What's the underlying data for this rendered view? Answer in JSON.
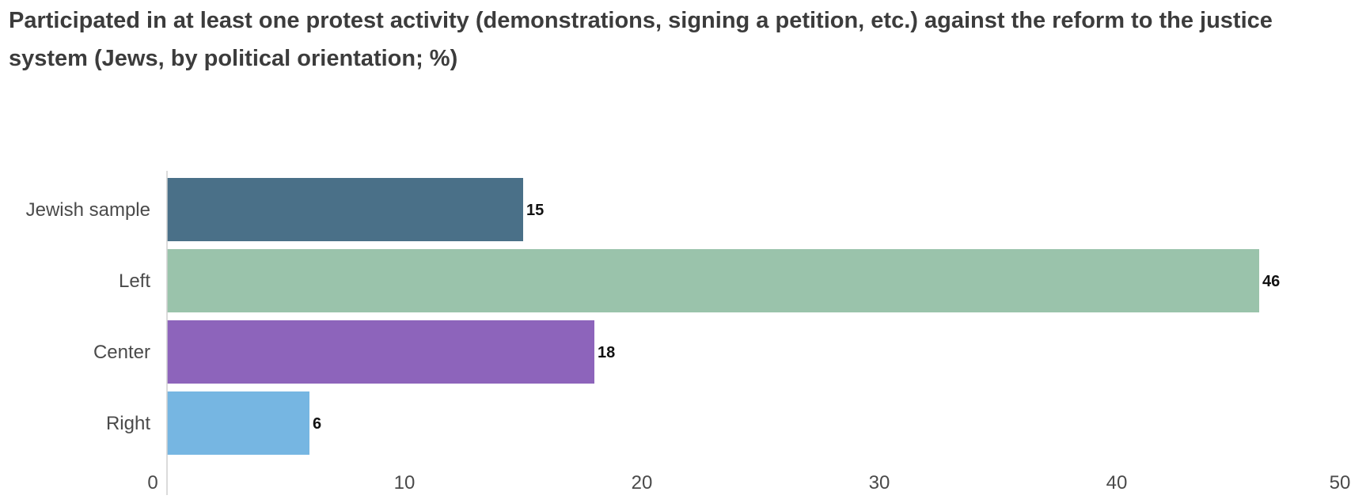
{
  "chart_data": {
    "type": "bar",
    "orientation": "horizontal",
    "title": "Participated in at least one protest activity (demonstrations, signing a petition, etc.) against the reform to the justice system (Jews, by political orientation; %)",
    "xlabel": "",
    "ylabel": "",
    "categories": [
      "Jewish sample",
      "Left",
      "Center",
      "Right"
    ],
    "values": [
      15,
      46,
      18,
      6
    ],
    "value_labels": [
      "15",
      "46",
      "18",
      "6"
    ],
    "colors": [
      "#4a7088",
      "#9ac3ab",
      "#8d64bb",
      "#76b6e2"
    ],
    "xlim": [
      0,
      50
    ],
    "xticks": [
      0,
      10,
      20,
      30,
      40,
      50
    ],
    "xtick_labels": [
      "0",
      "10",
      "20",
      "30",
      "40",
      "50"
    ],
    "grid": false,
    "legend": "none"
  }
}
